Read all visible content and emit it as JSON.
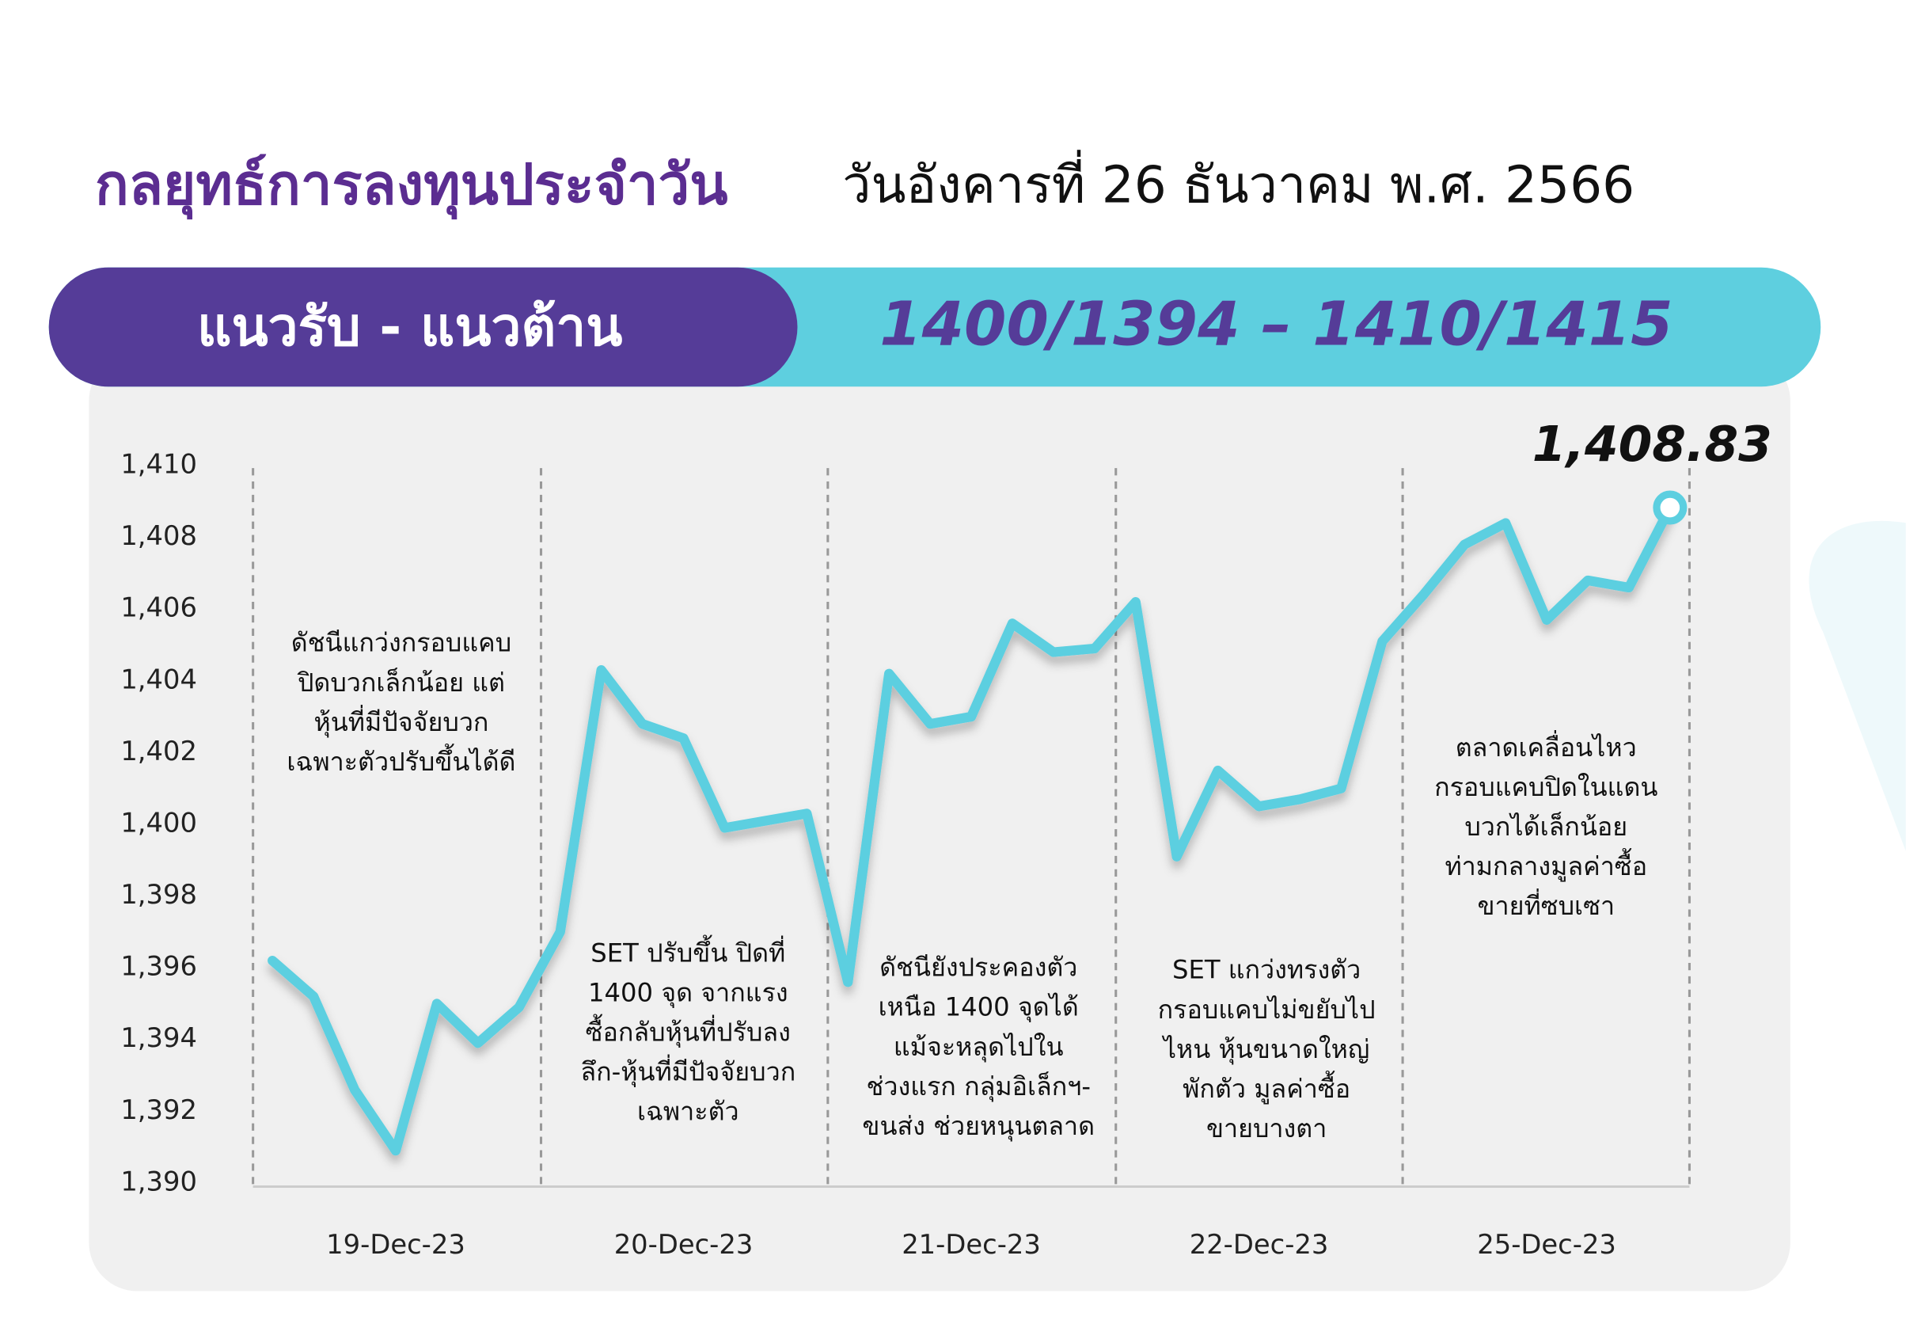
{
  "header": {
    "title": "กลยุทธ์การลงทุนประจำวัน",
    "date": "วันอังคารที่ 26 ธันวาคม พ.ศ. 2566",
    "banner_label": "แนวรับ - แนวต้าน",
    "banner_value": "1400/1394 –  1410/1415"
  },
  "chart_data": {
    "type": "line",
    "categories": [
      null,
      null,
      null,
      "19-Dec-23",
      null,
      null,
      null,
      null,
      null,
      null,
      "20-Dec-23",
      null,
      null,
      null,
      null,
      null,
      null,
      "21-Dec-23",
      null,
      null,
      null,
      null,
      null,
      null,
      "22-Dec-23",
      null,
      null,
      null,
      null,
      null,
      null,
      "25-Dec-23",
      null,
      null,
      null
    ],
    "values": [
      1396.2,
      1395.2,
      1392.6,
      1390.9,
      1395.0,
      1393.9,
      1394.9,
      1397.0,
      1404.3,
      1402.8,
      1402.4,
      1399.9,
      1400.1,
      1400.3,
      1395.6,
      1404.2,
      1402.8,
      1403.0,
      1405.6,
      1404.8,
      1404.9,
      1406.2,
      1399.1,
      1401.5,
      1400.5,
      1400.7,
      1401.0,
      1405.1,
      1406.4,
      1407.8,
      1408.4,
      1405.7,
      1406.8,
      1406.6,
      1408.83
    ],
    "value_labels": [
      null,
      null,
      null,
      null,
      null,
      null,
      null,
      null,
      null,
      null,
      null,
      null,
      null,
      null,
      null,
      null,
      null,
      null,
      null,
      null,
      null,
      null,
      null,
      null,
      null,
      null,
      null,
      null,
      null,
      null,
      null,
      null,
      null,
      null,
      "1,408.83"
    ],
    "color": "#5ccfe0",
    "ylim": [
      1390,
      1410
    ],
    "yticks": [
      {
        "value": 1390,
        "label": "1,390"
      },
      {
        "value": 1392,
        "label": "1,392"
      },
      {
        "value": 1394,
        "label": "1,394"
      },
      {
        "value": 1396,
        "label": "1,396"
      },
      {
        "value": 1398,
        "label": "1,398"
      },
      {
        "value": 1400,
        "label": "1,400"
      },
      {
        "value": 1402,
        "label": "1,402"
      },
      {
        "value": 1404,
        "label": "1,404"
      },
      {
        "value": 1406,
        "label": "1,406"
      },
      {
        "value": 1408,
        "label": "1,408"
      },
      {
        "value": 1410,
        "label": "1,410"
      }
    ],
    "annotations": [
      {
        "lines": [
          "ดัชนีแกว่งกรอบแคบ",
          "ปิดบวกเล็กน้อย แต่",
          "หุ้นที่มีปัจจัยบวก",
          "เฉพาะตัวปรับขึ้นได้ดี"
        ]
      },
      {
        "lines": [
          "SET ปรับขึ้น ปิดที่",
          "1400 จุด จากแรง",
          "ซื้อกลับหุ้นที่ปรับลง",
          "ลึก-หุ้นที่มีปัจจัยบวก",
          "เฉพาะตัว"
        ]
      },
      {
        "lines": [
          "ดัชนียังประคองตัว",
          "เหนือ 1400 จุดได้",
          "แม้จะหลุดไปใน",
          "ช่วงแรก กลุ่มอิเล็กฯ-",
          "ขนส่ง ช่วยหนุนตลาด"
        ]
      },
      {
        "lines": [
          "SET แกว่งทรงตัว",
          "กรอบแคบไม่ขยับไป",
          "ไหน หุ้นขนาดใหญ่",
          "พักตัว มูลค่าซื้อ",
          "ขายบางตา"
        ]
      },
      {
        "lines": [
          "ตลาดเคลื่อนไหว",
          "กรอบแคบปิดในแดน",
          "บวกได้เล็กน้อย",
          "ท่ามกลางมูลค่าซื้อ",
          "ขายที่ซบเซา"
        ]
      }
    ]
  }
}
